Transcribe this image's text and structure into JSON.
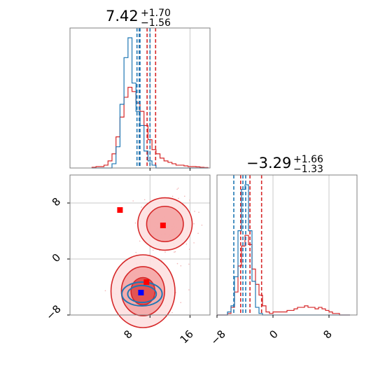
{
  "chart_data": [
    {
      "type": "histogram",
      "panel": "top-left",
      "title": {
        "value": "7.42",
        "plus": "+1.70",
        "minus": "−1.56"
      },
      "xlim": [
        -8,
        20
      ],
      "grid": true,
      "bins_x": [
        -3.6,
        -2.8,
        -2.0,
        -1.2,
        -0.4,
        0.4,
        1.2,
        2.0,
        2.8,
        3.6,
        4.4,
        5.2,
        6.0,
        6.8,
        7.6,
        8.4,
        9.2,
        10.0,
        10.8,
        11.6,
        12.4,
        13.2,
        14.0,
        14.8,
        15.6,
        16.4,
        17.2,
        18.0,
        18.8
      ],
      "series": [
        {
          "color": "#d62728",
          "values": [
            0.005,
            0.01,
            0.01,
            0.02,
            0.05,
            0.1,
            0.22,
            0.36,
            0.5,
            0.57,
            0.54,
            0.46,
            0.4,
            0.3,
            0.2,
            0.13,
            0.1,
            0.07,
            0.05,
            0.04,
            0.03,
            0.02,
            0.02,
            0.015,
            0.01,
            0.01,
            0.008,
            0.005,
            0.003
          ],
          "quantile_lines": [
            5.86,
            7.42,
            9.12
          ]
        },
        {
          "color": "#1f77b4",
          "values": [
            0,
            0,
            0,
            0,
            0,
            0.03,
            0.15,
            0.45,
            0.78,
            0.92,
            0.6,
            0.4,
            0.3,
            0.12,
            0.05,
            0.02,
            0,
            0,
            0,
            0,
            0,
            0,
            0,
            0,
            0,
            0,
            0,
            0,
            0
          ],
          "quantile_lines": [
            5.4,
            5.86,
            6.0,
            8.0
          ]
        }
      ]
    },
    {
      "type": "contour",
      "panel": "bottom-left",
      "xlim": [
        -8,
        20
      ],
      "ylim": [
        -8,
        12
      ],
      "xticks": [
        "8",
        "16"
      ],
      "yticks": [
        "−8",
        "0",
        "8"
      ],
      "grid": true,
      "series": [
        {
          "color": "#d62728",
          "levels": 3,
          "modes": [
            {
              "x": 6.6,
              "y": -4.6,
              "sx": 3.2,
              "sy": 2.6
            },
            {
              "x": 11.0,
              "y": 5.0,
              "sx": 3.2,
              "sy": 2.2
            }
          ]
        },
        {
          "color": "#1f77b4",
          "levels": 2,
          "modes": [
            {
              "x": 6.4,
              "y": -5.0,
              "sx": 2.6,
              "sy": 1.1
            }
          ]
        }
      ],
      "markers": [
        {
          "x": 2.0,
          "y": 7.0,
          "color": "#ff0000"
        },
        {
          "x": 10.6,
          "y": 4.8,
          "color": "#ff0000"
        },
        {
          "x": 7.3,
          "y": -3.3,
          "color": "#ff0000"
        },
        {
          "x": 6.2,
          "y": -4.8,
          "color": "#0000ff"
        }
      ]
    },
    {
      "type": "histogram",
      "panel": "bottom-right",
      "title": {
        "value": "−3.29",
        "plus": "+1.66",
        "minus": "−1.33"
      },
      "xlim": [
        -8,
        12
      ],
      "xticks": [
        "−8",
        "0",
        "8"
      ],
      "grid": true,
      "bins_x": [
        -8.0,
        -7.5,
        -7.0,
        -6.5,
        -6.0,
        -5.5,
        -5.0,
        -4.5,
        -4.0,
        -3.5,
        -3.0,
        -2.5,
        -2.0,
        -1.5,
        -1.0,
        -0.5,
        0.0,
        0.5,
        1.0,
        1.5,
        2.0,
        2.5,
        3.0,
        3.5,
        4.0,
        4.5,
        5.0,
        5.5,
        6.0,
        6.5,
        7.0,
        7.5,
        8.0,
        8.5,
        9.0,
        9.5,
        10.0,
        10.5,
        11.0
      ],
      "series": [
        {
          "color": "#d62728",
          "values": [
            0,
            0,
            0,
            0.01,
            0.05,
            0.15,
            0.32,
            0.45,
            0.52,
            0.46,
            0.3,
            0.2,
            0.13,
            0.06,
            0.02,
            0.01,
            0.02,
            0.02,
            0.02,
            0.02,
            0.03,
            0.03,
            0.04,
            0.05,
            0.05,
            0.06,
            0.05,
            0.05,
            0.04,
            0.05,
            0.04,
            0.03,
            0.02,
            0.01,
            0.01,
            0,
            0,
            0
          ],
          "quantile_lines": [
            -4.62,
            -3.29,
            -1.63
          ]
        },
        {
          "color": "#1f77b4",
          "values": [
            0,
            0,
            0,
            0.02,
            0.06,
            0.25,
            0.55,
            0.82,
            0.85,
            0.55,
            0.22,
            0.05,
            0.01,
            0,
            0,
            0,
            0,
            0,
            0,
            0,
            0,
            0,
            0,
            0,
            0,
            0,
            0,
            0,
            0,
            0,
            0,
            0,
            0,
            0,
            0,
            0,
            0,
            0
          ],
          "quantile_lines": [
            -5.6,
            -4.3,
            -3.9
          ]
        }
      ]
    }
  ]
}
